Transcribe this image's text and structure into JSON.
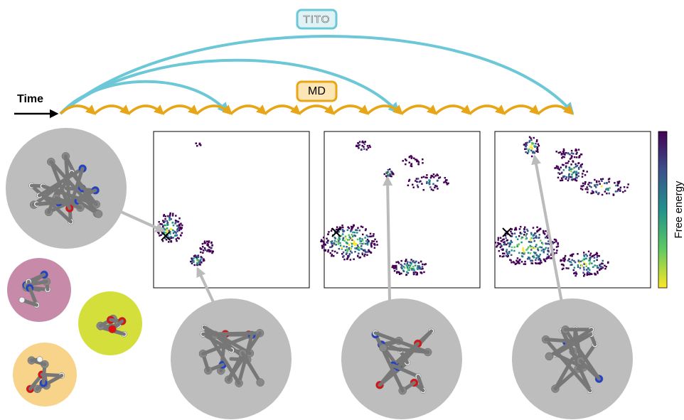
{
  "labels": {
    "tito": "TITO",
    "md": "MD",
    "time": "Time",
    "colorbar": "Free energy"
  }
}
